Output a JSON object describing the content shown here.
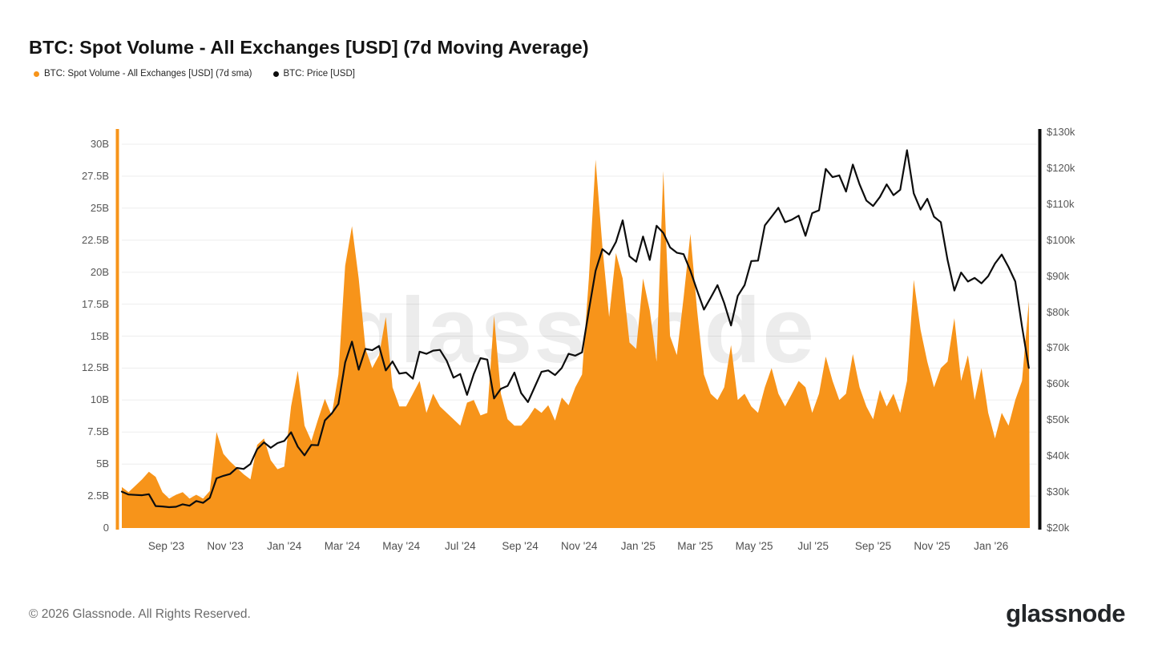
{
  "header": {
    "title": "BTC: Spot Volume - All Exchanges [USD] (7d Moving Average)"
  },
  "legend": {
    "items": [
      {
        "label": "BTC: Spot Volume - All Exchanges [USD] (7d sma)",
        "color": "#F7941A"
      },
      {
        "label": "BTC: Price [USD]",
        "color": "#0d0d0d"
      }
    ]
  },
  "watermark": {
    "text": "glassnode"
  },
  "footer": {
    "copyright": "© 2026 Glassnode. All Rights Reserved.",
    "brand": "glassnode"
  },
  "chart_data": {
    "type": "mixed",
    "subtypes": [
      "area",
      "line"
    ],
    "title": "BTC: Spot Volume - All Exchanges [USD] (7d Moving Average)",
    "grid": "horizontal",
    "legend_position": "top-left",
    "x_domain": [
      "2023-07-17",
      "2026-02-10"
    ],
    "x": [
      "2023-07-17",
      "2023-07-24",
      "2023-07-31",
      "2023-08-07",
      "2023-08-14",
      "2023-08-21",
      "2023-08-28",
      "2023-09-04",
      "2023-09-11",
      "2023-09-18",
      "2023-09-25",
      "2023-10-02",
      "2023-10-09",
      "2023-10-16",
      "2023-10-23",
      "2023-10-30",
      "2023-11-06",
      "2023-11-13",
      "2023-11-20",
      "2023-11-27",
      "2023-12-04",
      "2023-12-11",
      "2023-12-18",
      "2023-12-25",
      "2024-01-01",
      "2024-01-08",
      "2024-01-15",
      "2024-01-22",
      "2024-01-29",
      "2024-02-05",
      "2024-02-12",
      "2024-02-19",
      "2024-02-26",
      "2024-03-04",
      "2024-03-11",
      "2024-03-18",
      "2024-03-25",
      "2024-04-01",
      "2024-04-08",
      "2024-04-15",
      "2024-04-22",
      "2024-04-29",
      "2024-05-06",
      "2024-05-13",
      "2024-05-20",
      "2024-05-27",
      "2024-06-03",
      "2024-06-10",
      "2024-06-17",
      "2024-06-24",
      "2024-07-01",
      "2024-07-08",
      "2024-07-15",
      "2024-07-22",
      "2024-07-29",
      "2024-08-05",
      "2024-08-12",
      "2024-08-19",
      "2024-08-26",
      "2024-09-02",
      "2024-09-09",
      "2024-09-16",
      "2024-09-23",
      "2024-09-30",
      "2024-10-07",
      "2024-10-14",
      "2024-10-21",
      "2024-10-28",
      "2024-11-04",
      "2024-11-11",
      "2024-11-18",
      "2024-11-25",
      "2024-12-02",
      "2024-12-09",
      "2024-12-16",
      "2024-12-23",
      "2024-12-30",
      "2025-01-06",
      "2025-01-13",
      "2025-01-20",
      "2025-01-27",
      "2025-02-03",
      "2025-02-10",
      "2025-02-17",
      "2025-02-24",
      "2025-03-03",
      "2025-03-10",
      "2025-03-17",
      "2025-03-24",
      "2025-03-31",
      "2025-04-07",
      "2025-04-14",
      "2025-04-21",
      "2025-04-28",
      "2025-05-05",
      "2025-05-12",
      "2025-05-19",
      "2025-05-26",
      "2025-06-02",
      "2025-06-09",
      "2025-06-16",
      "2025-06-23",
      "2025-06-30",
      "2025-07-07",
      "2025-07-14",
      "2025-07-21",
      "2025-07-28",
      "2025-08-04",
      "2025-08-11",
      "2025-08-18",
      "2025-08-25",
      "2025-09-01",
      "2025-09-08",
      "2025-09-15",
      "2025-09-22",
      "2025-09-29",
      "2025-10-06",
      "2025-10-13",
      "2025-10-20",
      "2025-10-27",
      "2025-11-03",
      "2025-11-10",
      "2025-11-17",
      "2025-11-24",
      "2025-12-01",
      "2025-12-08",
      "2025-12-15",
      "2025-12-22",
      "2025-12-29",
      "2026-01-05",
      "2026-01-12",
      "2026-01-19",
      "2026-01-26",
      "2026-02-02",
      "2026-02-09"
    ],
    "series": [
      {
        "name": "BTC: Spot Volume - All Exchanges [USD] (7d sma)",
        "type": "area",
        "axis": "left",
        "unit": "billion USD",
        "color": "#F7941A",
        "values": [
          3.2,
          2.8,
          3.3,
          3.8,
          4.4,
          4.0,
          2.8,
          2.3,
          2.6,
          2.8,
          2.3,
          2.6,
          2.3,
          2.9,
          7.5,
          5.8,
          5.2,
          4.7,
          4.2,
          3.8,
          6.5,
          7.0,
          5.3,
          4.6,
          4.8,
          9.5,
          12.3,
          8.0,
          6.8,
          8.5,
          10.1,
          8.8,
          12.0,
          20.5,
          23.6,
          19.5,
          14.0,
          12.5,
          13.5,
          16.5,
          11.0,
          9.5,
          9.5,
          10.5,
          11.5,
          9.0,
          10.5,
          9.5,
          9.0,
          8.5,
          8.0,
          9.8,
          10.0,
          8.8,
          9.0,
          16.6,
          10.5,
          8.5,
          8.0,
          8.0,
          8.6,
          9.4,
          9.0,
          9.6,
          8.4,
          10.2,
          9.6,
          11.0,
          12.0,
          19.5,
          28.8,
          22.0,
          16.5,
          21.5,
          19.5,
          14.5,
          14.0,
          19.5,
          17.0,
          13.0,
          27.9,
          15.0,
          13.5,
          18.0,
          23.0,
          17.0,
          12.0,
          10.5,
          10.0,
          11.0,
          14.3,
          10.0,
          10.5,
          9.5,
          9.0,
          11.0,
          12.5,
          10.5,
          9.5,
          10.5,
          11.5,
          11.0,
          9.0,
          10.5,
          13.4,
          11.5,
          10.0,
          10.5,
          13.6,
          11.0,
          9.5,
          8.5,
          10.8,
          9.5,
          10.5,
          9.0,
          11.5,
          19.4,
          15.5,
          13.0,
          11.0,
          12.5,
          13.0,
          16.4,
          11.5,
          13.5,
          10.0,
          12.5,
          9.0,
          7.0,
          9.0,
          8.0,
          10.0,
          11.5,
          17.7
        ]
      },
      {
        "name": "BTC: Price [USD]",
        "type": "line",
        "axis": "right",
        "unit": "thousand USD",
        "color": "#0d0d0d",
        "values": [
          30.1,
          29.3,
          29.2,
          29.1,
          29.4,
          26.1,
          26.0,
          25.8,
          25.9,
          26.6,
          26.2,
          27.5,
          27.0,
          28.4,
          33.8,
          34.5,
          35.0,
          36.7,
          36.4,
          37.8,
          41.9,
          43.8,
          42.3,
          43.6,
          44.2,
          46.6,
          42.6,
          40.2,
          43.1,
          43.0,
          49.9,
          51.8,
          54.5,
          66.0,
          71.8,
          64.0,
          69.8,
          69.4,
          70.6,
          63.8,
          66.3,
          62.9,
          63.2,
          61.5,
          69.0,
          68.4,
          69.3,
          69.5,
          66.5,
          61.8,
          62.8,
          57.0,
          62.8,
          67.2,
          66.8,
          56.0,
          58.7,
          59.5,
          63.2,
          57.5,
          55.0,
          59.2,
          63.4,
          63.8,
          62.5,
          64.5,
          68.4,
          67.9,
          68.8,
          80.5,
          91.5,
          97.5,
          96.0,
          99.5,
          105.5,
          95.5,
          94.0,
          101.0,
          94.5,
          104.0,
          102.0,
          98.0,
          96.5,
          96.1,
          91.5,
          86.0,
          80.7,
          84.0,
          87.5,
          82.5,
          76.3,
          84.5,
          87.5,
          94.2,
          94.3,
          104.1,
          106.5,
          109.0,
          105.0,
          105.7,
          106.8,
          101.2,
          107.5,
          108.3,
          119.8,
          117.5,
          118.0,
          113.5,
          121.0,
          115.5,
          111.0,
          109.5,
          112.0,
          115.5,
          112.5,
          114.0,
          125.0,
          113.0,
          108.5,
          111.5,
          106.5,
          105.0,
          94.5,
          86.0,
          91.0,
          88.5,
          89.5,
          88.0,
          90.0,
          93.5,
          96.0,
          92.5,
          88.5,
          76.0,
          64.5
        ]
      }
    ],
    "left_axis": {
      "ticks": [
        "30B",
        "27.5B",
        "25B",
        "22.5B",
        "20B",
        "17.5B",
        "15B",
        "12.5B",
        "10B",
        "7.5B",
        "5B",
        "2.5B",
        "0"
      ],
      "tick_values": [
        30,
        27.5,
        25,
        22.5,
        20,
        17.5,
        15,
        12.5,
        10,
        7.5,
        5,
        2.5,
        0
      ],
      "range": [
        0,
        31.3
      ],
      "axis_line_color": "#F7941A"
    },
    "right_axis": {
      "ticks": [
        "$130k",
        "$120k",
        "$110k",
        "$100k",
        "$90k",
        "$80k",
        "$70k",
        "$60k",
        "$50k",
        "$40k",
        "$30k",
        "$20k"
      ],
      "tick_values": [
        130,
        120,
        110,
        100,
        90,
        80,
        70,
        60,
        50,
        40,
        30,
        20
      ],
      "range": [
        20,
        130
      ],
      "axis_line_color": "#0d0d0d"
    },
    "x_ticks": {
      "labels": [
        "Sep '23",
        "Nov '23",
        "Jan '24",
        "Mar '24",
        "May '24",
        "Jul '24",
        "Sep '24",
        "Nov '24",
        "Jan '25",
        "Mar '25",
        "May '25",
        "Jul '25",
        "Sep '25",
        "Nov '25",
        "Jan '26"
      ],
      "dates": [
        "2023-09-01",
        "2023-11-01",
        "2024-01-01",
        "2024-03-01",
        "2024-05-01",
        "2024-07-01",
        "2024-09-01",
        "2024-11-01",
        "2025-01-01",
        "2025-03-01",
        "2025-05-01",
        "2025-07-01",
        "2025-09-01",
        "2025-11-01",
        "2026-01-01"
      ]
    }
  }
}
